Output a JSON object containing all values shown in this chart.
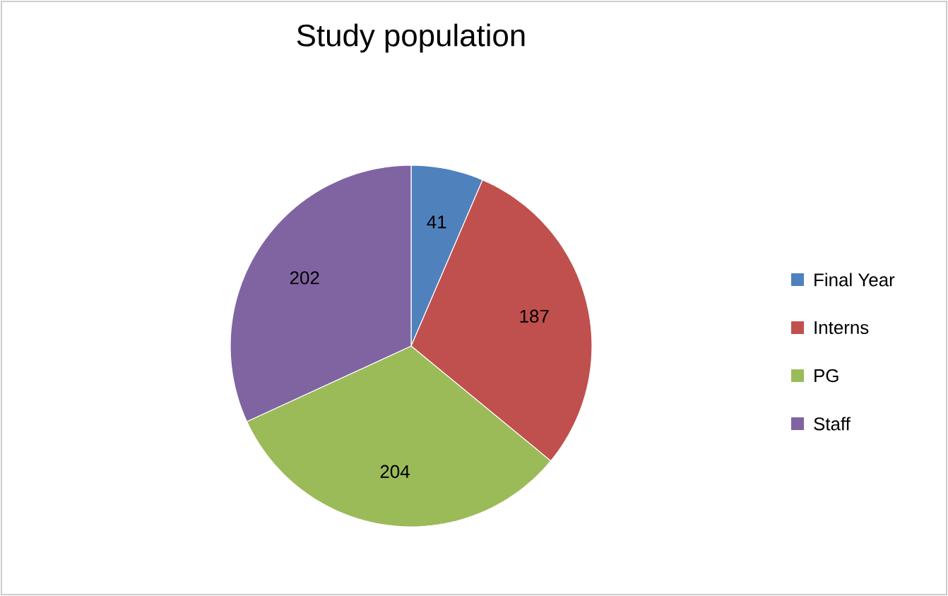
{
  "chart_data": {
    "type": "pie",
    "title": "Study population",
    "categories": [
      "Final Year",
      "Interns",
      "PG",
      "Staff"
    ],
    "values": [
      41,
      187,
      204,
      202
    ],
    "colors": [
      "#4f81bd",
      "#c0504d",
      "#9bbb59",
      "#8064a2"
    ],
    "data_labels": true,
    "legend": "right"
  }
}
